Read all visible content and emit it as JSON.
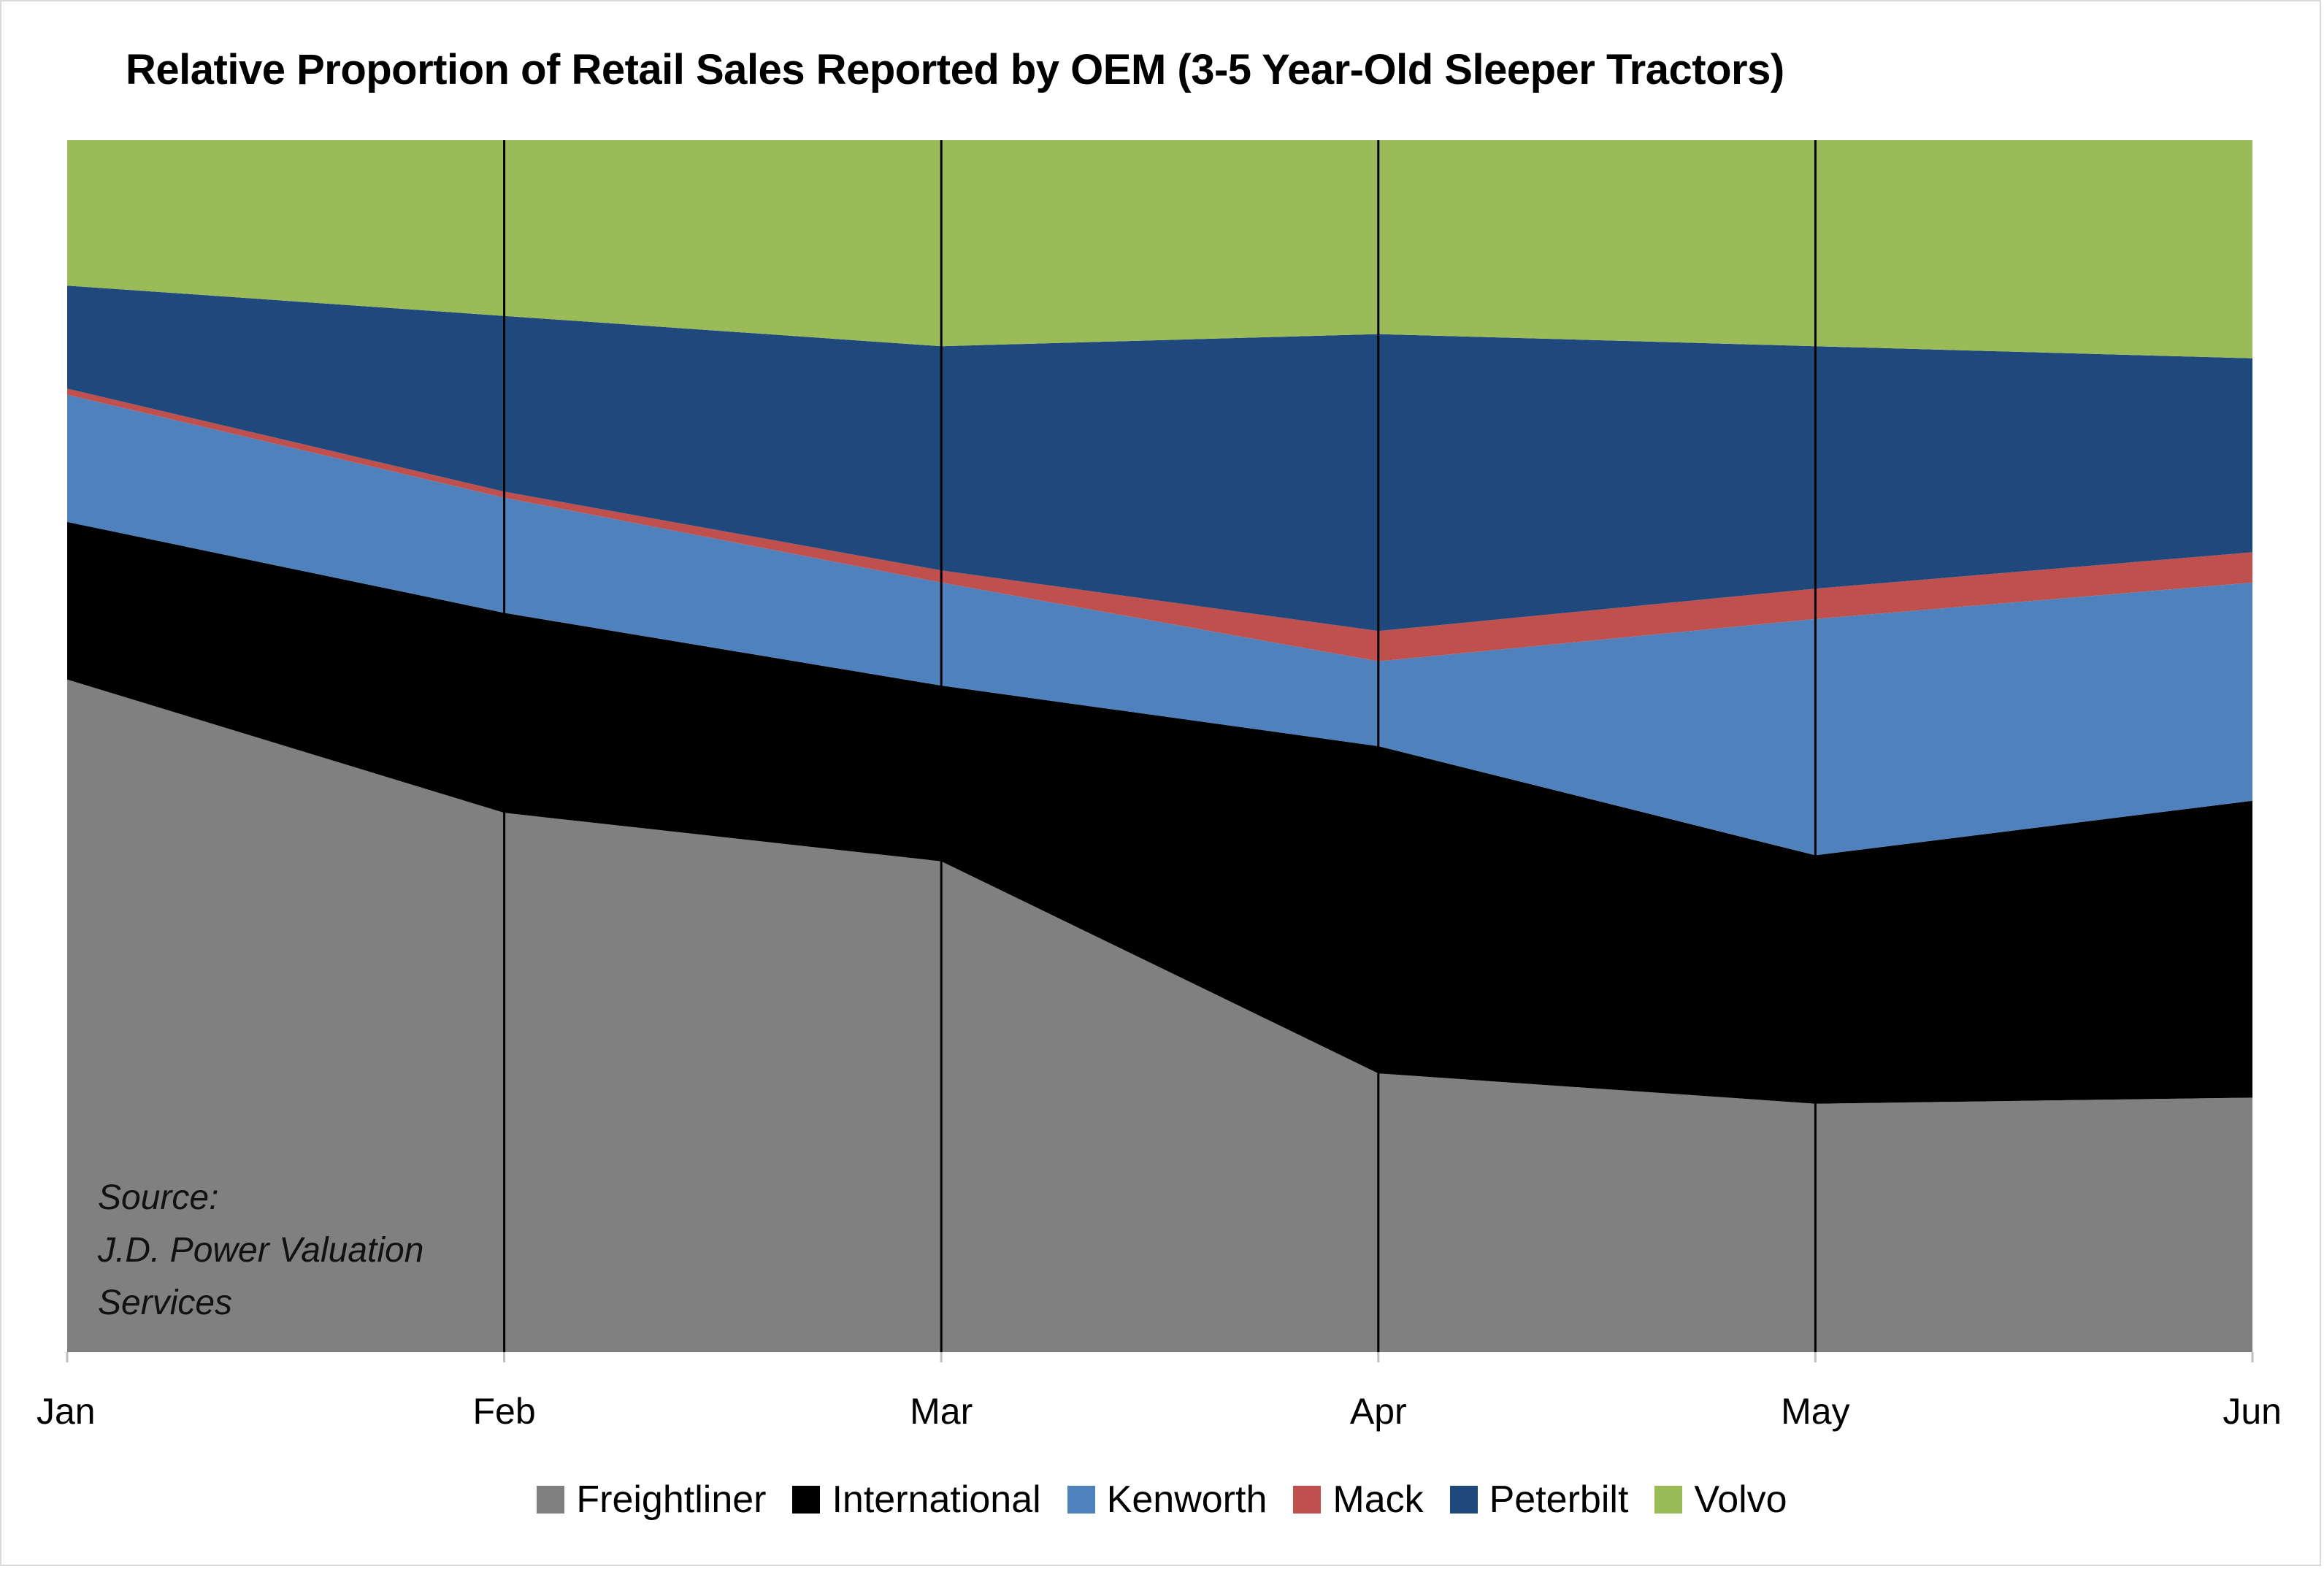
{
  "chart_data": {
    "type": "area",
    "stacked": "percent",
    "title": "Relative Proportion of Retail Sales Reported by OEM (3-5 Year-Old Sleeper Tractors)",
    "categories": [
      "Jan",
      "Feb",
      "Mar",
      "Apr",
      "May",
      "Jun"
    ],
    "ylim": [
      0,
      100
    ],
    "grid": "vertical",
    "legend": "bottom",
    "series": [
      {
        "name": "Freightliner",
        "color": "#808080",
        "values": [
          55.5,
          44.5,
          40.5,
          23.0,
          20.5,
          21.0
        ]
      },
      {
        "name": "International",
        "color": "#000000",
        "values": [
          13.0,
          16.5,
          14.5,
          27.0,
          20.5,
          24.5
        ]
      },
      {
        "name": "Kenworth",
        "color": "#4f81bd",
        "values": [
          10.5,
          9.5,
          8.5,
          7.0,
          19.5,
          18.0
        ]
      },
      {
        "name": "Mack",
        "color": "#c0504d",
        "values": [
          0.5,
          0.5,
          1.0,
          2.5,
          2.5,
          2.5
        ]
      },
      {
        "name": "Peterbilt",
        "color": "#1f497d",
        "values": [
          8.5,
          14.5,
          18.5,
          24.5,
          20.0,
          16.0
        ]
      },
      {
        "name": "Volvo",
        "color": "#9bbb59",
        "values": [
          12.0,
          14.5,
          17.0,
          16.0,
          17.0,
          18.0
        ]
      }
    ]
  },
  "title": "Relative Proportion of Retail Sales Reported by OEM (3-5 Year-Old Sleeper Tractors)",
  "source_note": {
    "line1": "Source:",
    "line2": "J.D. Power Valuation",
    "line3": "Services"
  }
}
